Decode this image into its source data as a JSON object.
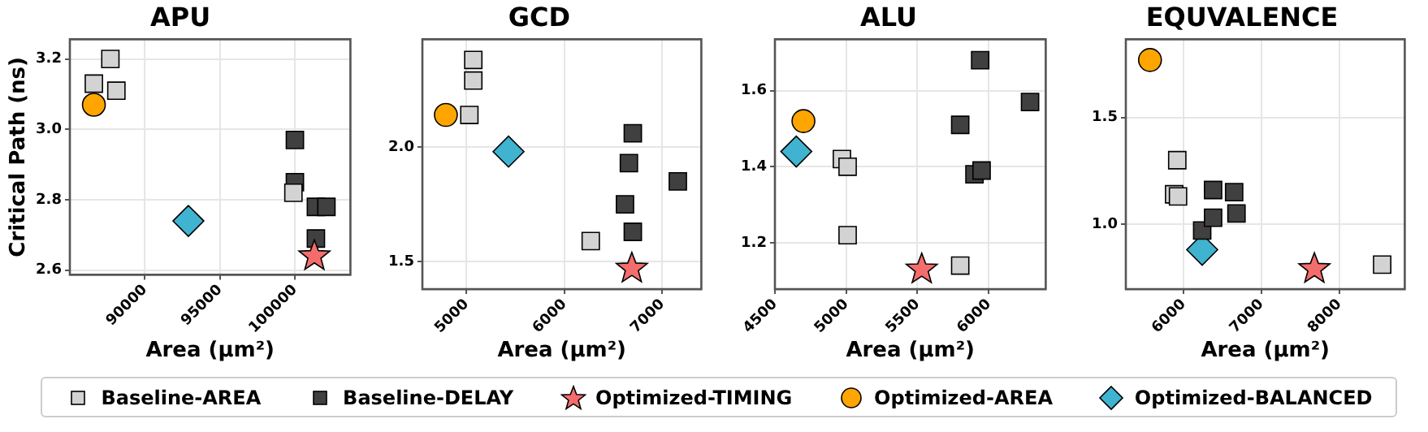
{
  "chart_data": [
    {
      "type": "scatter",
      "title": "APU",
      "xlabel": "Area (µm²)",
      "ylabel": "Critical Path (ns)",
      "xlim": [
        85000,
        103700
      ],
      "ylim": [
        2.587,
        3.256
      ],
      "xticks": [
        90000,
        95000,
        100000
      ],
      "yticks": [
        2.6,
        2.8,
        {
          "value": 3,
          "label": "3.0"
        },
        3.2
      ],
      "grid": true,
      "legend": "bottom",
      "series": [
        {
          "name": "Baseline-AREA",
          "color": "#d3d3d3",
          "marker": "square",
          "x": [
            87700,
            86600,
            88100,
            99900
          ],
          "values": [
            3.2,
            3.13,
            3.11,
            2.82
          ]
        },
        {
          "name": "Baseline-DELAY",
          "color": "#404040",
          "marker": "square",
          "x": [
            100000,
            100000,
            101400,
            102100,
            101400
          ],
          "values": [
            2.97,
            2.85,
            2.78,
            2.78,
            2.69
          ]
        },
        {
          "name": "Optimized-TIMING",
          "color": "#f46d6d",
          "marker": "star",
          "x": [
            101300
          ],
          "values": [
            2.64
          ]
        },
        {
          "name": "Optimized-AREA",
          "color": "#ffa500",
          "marker": "circle",
          "x": [
            86600
          ],
          "values": [
            3.07
          ]
        },
        {
          "name": "Optimized-BALANCED",
          "color": "#3fb3cf",
          "marker": "diamond",
          "x": [
            92900
          ],
          "values": [
            2.74
          ]
        }
      ]
    },
    {
      "type": "scatter",
      "title": "GCD",
      "xlabel": "Area (µm²)",
      "xlim": [
        4550,
        7400
      ],
      "ylim": [
        1.38,
        2.47
      ],
      "xticks": [
        5000,
        6000,
        7000
      ],
      "yticks": [
        1.5,
        {
          "value": 2,
          "label": "2.0"
        }
      ],
      "grid": true,
      "legend": "bottom",
      "series": [
        {
          "name": "Baseline-AREA",
          "color": "#d3d3d3",
          "marker": "square",
          "x": [
            5070,
            5070,
            5030,
            6270
          ],
          "values": [
            2.38,
            2.29,
            2.14,
            1.59
          ]
        },
        {
          "name": "Baseline-DELAY",
          "color": "#404040",
          "marker": "square",
          "x": [
            6700,
            6660,
            6620,
            6700,
            7160
          ],
          "values": [
            2.06,
            1.93,
            1.75,
            1.63,
            1.85
          ]
        },
        {
          "name": "Optimized-TIMING",
          "color": "#f46d6d",
          "marker": "star",
          "x": [
            6690
          ],
          "values": [
            1.47
          ]
        },
        {
          "name": "Optimized-AREA",
          "color": "#ffa500",
          "marker": "circle",
          "x": [
            4790
          ],
          "values": [
            2.14
          ]
        },
        {
          "name": "Optimized-BALANCED",
          "color": "#3fb3cf",
          "marker": "diamond",
          "x": [
            5430
          ],
          "values": [
            1.98
          ]
        }
      ]
    },
    {
      "type": "scatter",
      "title": "ALU",
      "xlabel": "Area (µm²)",
      "xlim": [
        4500,
        6400
      ],
      "ylim": [
        1.078,
        1.735
      ],
      "xticks": [
        4500,
        5000,
        5500,
        6000
      ],
      "yticks": [
        1.2,
        1.4,
        1.6
      ],
      "grid": true,
      "legend": "bottom",
      "series": [
        {
          "name": "Baseline-AREA",
          "color": "#d3d3d3",
          "marker": "square",
          "x": [
            4970,
            5010,
            5010,
            5800
          ],
          "values": [
            1.42,
            1.4,
            1.22,
            1.14
          ]
        },
        {
          "name": "Baseline-DELAY",
          "color": "#404040",
          "marker": "square",
          "x": [
            5940,
            5800,
            6290,
            5900,
            5950
          ],
          "values": [
            1.68,
            1.51,
            1.57,
            1.38,
            1.39
          ]
        },
        {
          "name": "Optimized-TIMING",
          "color": "#f46d6d",
          "marker": "star",
          "x": [
            5530
          ],
          "values": [
            1.13
          ]
        },
        {
          "name": "Optimized-AREA",
          "color": "#ffa500",
          "marker": "circle",
          "x": [
            4700
          ],
          "values": [
            1.52
          ]
        },
        {
          "name": "Optimized-BALANCED",
          "color": "#3fb3cf",
          "marker": "diamond",
          "x": [
            4650
          ],
          "values": [
            1.44
          ]
        }
      ]
    },
    {
      "type": "scatter",
      "title": "EQUVALENCE",
      "xlabel": "Area (µm²)",
      "xlim": [
        5260,
        8840
      ],
      "ylim": [
        0.695,
        1.867
      ],
      "xticks": [
        6000,
        7000,
        8000
      ],
      "yticks": [
        {
          "value": 1,
          "label": "1.0"
        },
        1.5
      ],
      "grid": true,
      "legend": "bottom",
      "series": [
        {
          "name": "Baseline-AREA",
          "color": "#d3d3d3",
          "marker": "square",
          "x": [
            5920,
            5880,
            5930,
            8550
          ],
          "values": [
            1.3,
            1.14,
            1.13,
            0.81
          ]
        },
        {
          "name": "Baseline-DELAY",
          "color": "#404040",
          "marker": "square",
          "x": [
            6240,
            6380,
            6380,
            6650,
            6680
          ],
          "values": [
            0.97,
            1.16,
            1.03,
            1.15,
            1.05
          ]
        },
        {
          "name": "Optimized-TIMING",
          "color": "#f46d6d",
          "marker": "star",
          "x": [
            7680
          ],
          "values": [
            0.79
          ]
        },
        {
          "name": "Optimized-AREA",
          "color": "#ffa500",
          "marker": "circle",
          "x": [
            5570
          ],
          "values": [
            1.77
          ]
        },
        {
          "name": "Optimized-BALANCED",
          "color": "#3fb3cf",
          "marker": "diamond",
          "x": [
            6240
          ],
          "values": [
            0.88
          ]
        }
      ]
    }
  ]
}
